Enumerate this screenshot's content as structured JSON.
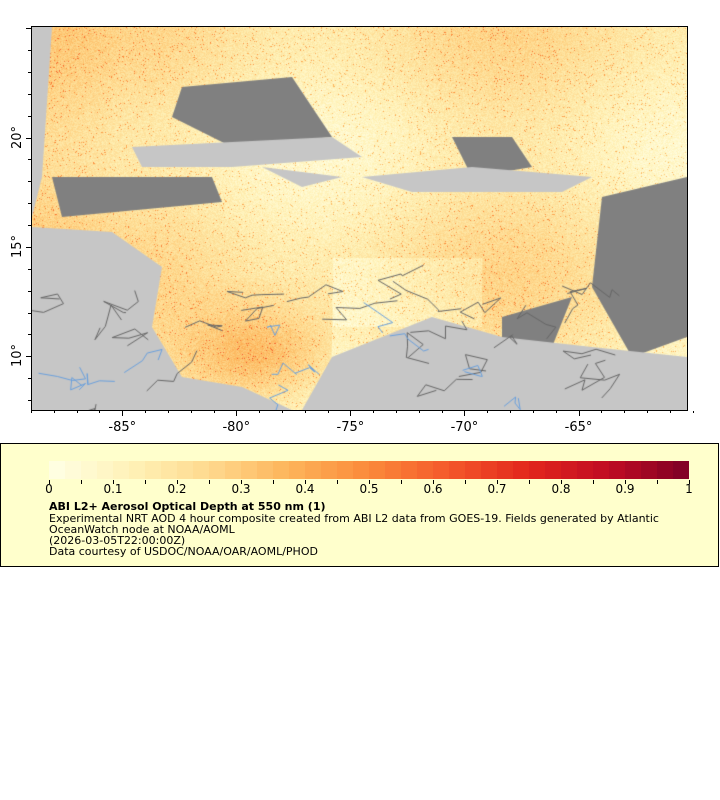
{
  "map": {
    "lon_range": [
      -89,
      -60.2
    ],
    "lat_range": [
      7.5,
      25.1
    ],
    "x_ticks": [
      "-85°",
      "-80°",
      "-75°",
      "-70°",
      "-65°"
    ],
    "x_tick_values": [
      -85,
      -80,
      -75,
      -70,
      -65
    ],
    "y_ticks": [
      "20°",
      "15°",
      "10°"
    ],
    "y_tick_values": [
      20,
      15,
      10
    ],
    "colors": {
      "land": "#c6c6c6",
      "no_data": "#808080",
      "borders": "#666666",
      "rivers": "#6aa0dd"
    }
  },
  "legend": {
    "colorbar_labels": [
      "0",
      "0.1",
      "0.2",
      "0.3",
      "0.4",
      "0.5",
      "0.6",
      "0.7",
      "0.8",
      "0.9",
      "1"
    ],
    "colorbar_range": [
      0,
      1
    ],
    "palette": [
      "#ffffe5",
      "#fff2b8",
      "#fed98e",
      "#fdb45a",
      "#fb8a3a",
      "#f4582a",
      "#e2261c",
      "#c00b23",
      "#7d0025"
    ],
    "title": "ABI L2+ Aerosol Optical Depth at 550 nm (1)",
    "line1": "Experimental NRT AOD 4 hour composite created from ABI L2 data from GOES-19. Fields generated by Atlantic",
    "line2": "OceanWatch node at NOAA/AOML",
    "line3": "(2026-03-05T22:00:00Z)",
    "line4": "Data courtesy of USDOC/NOAA/OAR/AOML/PHOD"
  }
}
